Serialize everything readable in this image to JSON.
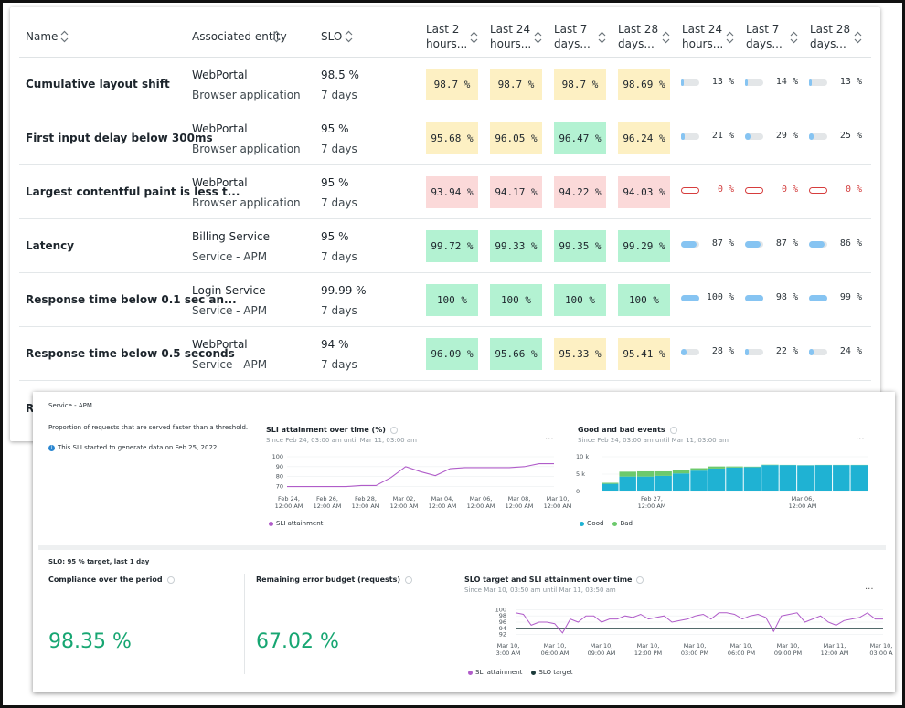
{
  "table": {
    "headers": {
      "name": "Name",
      "entity": "Associated entity",
      "slo": "SLO",
      "cols": [
        {
          "l1": "Last 2",
          "l2": "hours..."
        },
        {
          "l1": "Last 24",
          "l2": "hours..."
        },
        {
          "l1": "Last 7",
          "l2": "days..."
        },
        {
          "l1": "Last 28",
          "l2": "days..."
        },
        {
          "l1": "Last 24",
          "l2": "hours..."
        },
        {
          "l1": "Last 7",
          "l2": "days..."
        },
        {
          "l1": "Last 28",
          "l2": "days..."
        }
      ]
    },
    "rows": [
      {
        "name": "Cumulative layout shift",
        "entity": "WebPortal",
        "entity_type": "Browser application",
        "slo": "98.5 %",
        "period": "7 days",
        "att": [
          "98.7 %",
          "98.7 %",
          "98.7 %",
          "98.69 %"
        ],
        "att_status": [
          "warn",
          "warn",
          "warn",
          "warn"
        ],
        "budget": [
          "13 %",
          "14 %",
          "13 %"
        ],
        "budget_value": [
          13,
          14,
          13
        ]
      },
      {
        "name": "First input delay below 300ms",
        "entity": "WebPortal",
        "entity_type": "Browser application",
        "slo": "95 %",
        "period": "7 days",
        "att": [
          "95.68 %",
          "96.05 %",
          "96.47 %",
          "96.24 %"
        ],
        "att_status": [
          "warn",
          "warn",
          "good",
          "warn"
        ],
        "budget": [
          "21 %",
          "29 %",
          "25 %"
        ],
        "budget_value": [
          21,
          29,
          25
        ]
      },
      {
        "name": "Largest contentful paint is less t...",
        "entity": "WebPortal",
        "entity_type": "Browser application",
        "slo": "95 %",
        "period": "7 days",
        "att": [
          "93.94 %",
          "94.17 %",
          "94.22 %",
          "94.03 %"
        ],
        "att_status": [
          "bad",
          "bad",
          "bad",
          "bad"
        ],
        "budget": [
          "0 %",
          "0 %",
          "0 %"
        ],
        "budget_value": [
          0,
          0,
          0
        ]
      },
      {
        "name": "Latency",
        "entity": "Billing Service",
        "entity_type": "Service - APM",
        "slo": "95 %",
        "period": "7 days",
        "att": [
          "99.72 %",
          "99.33 %",
          "99.35 %",
          "99.29 %"
        ],
        "att_status": [
          "good",
          "good",
          "good",
          "good"
        ],
        "budget": [
          "87 %",
          "87 %",
          "86 %"
        ],
        "budget_value": [
          87,
          87,
          86
        ]
      },
      {
        "name": "Response time below 0.1 sec an...",
        "entity": "Login Service",
        "entity_type": "Service - APM",
        "slo": "99.99 %",
        "period": "7 days",
        "att": [
          "100 %",
          "100 %",
          "100 %",
          "100 %"
        ],
        "att_status": [
          "good",
          "good",
          "good",
          "good"
        ],
        "budget": [
          "100 %",
          "98 %",
          "99 %"
        ],
        "budget_value": [
          100,
          98,
          99
        ]
      },
      {
        "name": "Response time below 0.5 seconds",
        "entity": "WebPortal",
        "entity_type": "Service - APM",
        "slo": "94 %",
        "period": "7 days",
        "att": [
          "96.09 %",
          "95.66 %",
          "95.33 %",
          "95.41 %"
        ],
        "att_status": [
          "good",
          "good",
          "warn",
          "warn"
        ],
        "budget": [
          "28 %",
          "22 %",
          "24 %"
        ],
        "budget_value": [
          28,
          22,
          24
        ]
      }
    ],
    "peek_row": "R"
  },
  "detail": {
    "entity_type": "Service - APM",
    "description": "Proportion of requests that are served faster than a threshold.",
    "info": "This SLI started to generate data on Feb 25, 2022.",
    "slo_line": "SLO: 95 % target, last 1 day",
    "compliance_title": "Compliance over the period",
    "compliance_value": "98.35 %",
    "budget_title": "Remaining error budget (requests)",
    "budget_value": "67.02 %",
    "more": "..."
  },
  "chart_data": [
    {
      "type": "line",
      "title": "SLI attainment over time (%)",
      "subtitle": "Since Feb 24, 03:00 am until Mar 11, 03:00 am",
      "y_ticks": [
        "100",
        "90",
        "80",
        "70"
      ],
      "ylim": [
        65,
        100
      ],
      "x_ticks": [
        [
          "Feb 24,",
          "12:00 AM"
        ],
        [
          "Feb 26,",
          "12:00 AM"
        ],
        [
          "Feb 28,",
          "12:00 AM"
        ],
        [
          "Mar 02,",
          "12:00 AM"
        ],
        [
          "Mar 04,",
          "12:00 AM"
        ],
        [
          "Mar 06,",
          "12:00 AM"
        ],
        [
          "Mar 08,",
          "12:00 AM"
        ],
        [
          "Mar 10,",
          "12:00 AM"
        ]
      ],
      "series": [
        {
          "name": "SLI attainment",
          "color": "#b05cc9",
          "values": [
            70,
            70,
            70,
            70,
            70,
            71,
            71,
            79,
            90,
            85,
            81,
            88,
            89,
            89,
            89,
            89,
            90,
            93,
            93
          ]
        }
      ]
    },
    {
      "type": "bar",
      "title": "Good and bad events",
      "subtitle": "Since Feb 24, 03:00 am until Mar 11, 03:00 am",
      "y_ticks": [
        "10 k",
        "5 k",
        "0"
      ],
      "ylim": [
        0,
        10000
      ],
      "x_ticks": [
        [
          "Feb 27,",
          "12:00 AM"
        ],
        [
          "Mar 06,",
          "12:00 AM"
        ]
      ],
      "series": [
        {
          "name": "Good",
          "color": "#1fb2d3",
          "values": [
            2200,
            4300,
            4300,
            4500,
            5200,
            6000,
            6600,
            6900,
            7000,
            7600,
            7600,
            7500,
            7600,
            7600,
            7600
          ]
        },
        {
          "name": "Bad",
          "color": "#6cc96c",
          "values": [
            300,
            1400,
            1500,
            1300,
            900,
            700,
            600,
            300,
            150,
            100,
            50,
            50,
            50,
            50,
            50
          ]
        }
      ]
    },
    {
      "type": "line",
      "title": "SLO target and SLI attainment over time",
      "subtitle": "Since Mar 10, 03:50 am until Mar 11, 03:50 am",
      "y_ticks": [
        "100",
        "98",
        "96",
        "94",
        "92"
      ],
      "ylim": [
        91,
        101
      ],
      "x_ticks": [
        [
          "Mar 10,",
          "3:00 AM"
        ],
        [
          "Mar 10,",
          "06:00 AM"
        ],
        [
          "Mar 10,",
          "09:00 AM"
        ],
        [
          "Mar 10,",
          "12:00 PM"
        ],
        [
          "Mar 10,",
          "03:00 PM"
        ],
        [
          "Mar 10,",
          "06:00 PM"
        ],
        [
          "Mar 10,",
          "09:00 PM"
        ],
        [
          "Mar 11,",
          "12:00 AM"
        ],
        [
          "Mar 10,",
          "03:00 A"
        ]
      ],
      "series": [
        {
          "name": "SLI attainment",
          "color": "#b05cc9",
          "values": [
            99,
            98.5,
            95,
            96,
            96,
            95.5,
            92.5,
            97,
            96,
            98,
            98,
            96,
            97,
            97,
            98,
            97.5,
            98.5,
            97,
            97.5,
            98,
            96,
            96.5,
            97,
            98,
            98.5,
            97,
            99,
            99,
            98.5,
            97,
            98,
            98.5,
            97.5,
            93,
            98,
            98.5,
            99,
            96,
            97,
            98,
            96,
            95,
            96.5,
            97,
            97.5,
            99,
            97,
            97
          ]
        },
        {
          "name": "SLO target",
          "color": "#1b3a3a",
          "values": [
            94
          ]
        }
      ]
    }
  ]
}
